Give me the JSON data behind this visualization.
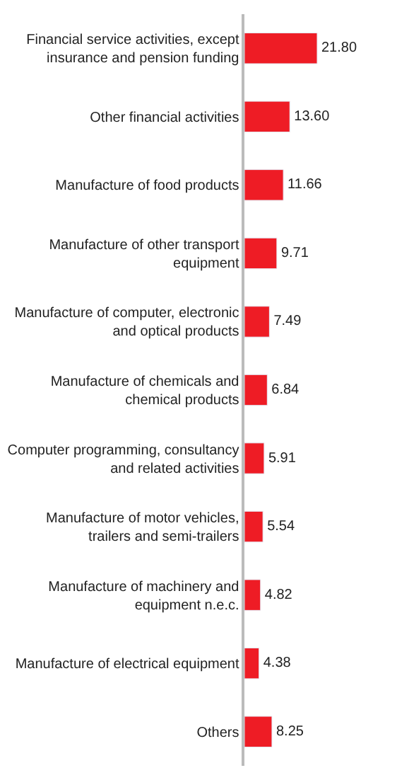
{
  "chart_data": {
    "type": "bar",
    "orientation": "horizontal",
    "legend": false,
    "value_labels": [
      "21.80",
      "13.60",
      "11.66",
      "9.71",
      "7.49",
      "6.84",
      "5.91",
      "5.54",
      "4.82",
      "4.38",
      "8.25"
    ],
    "categories": [
      "Financial service activities, except insurance and pension funding",
      "Other financial activities",
      "Manufacture of food products",
      "Manufacture of other transport equipment",
      "Manufacture of computer, electronic and optical products",
      "Manufacture of chemicals and chemical products",
      "Computer programming, consultancy and related activities",
      "Manufacture of motor vehicles, trailers and semi-trailers",
      "Manufacture of machinery and equipment n.e.c.",
      "Manufacture of electrical equipment",
      "Others"
    ],
    "values": [
      21.8,
      13.6,
      11.66,
      9.71,
      7.49,
      6.84,
      5.91,
      5.54,
      4.82,
      4.38,
      8.25
    ],
    "color": "#ee1c25"
  }
}
